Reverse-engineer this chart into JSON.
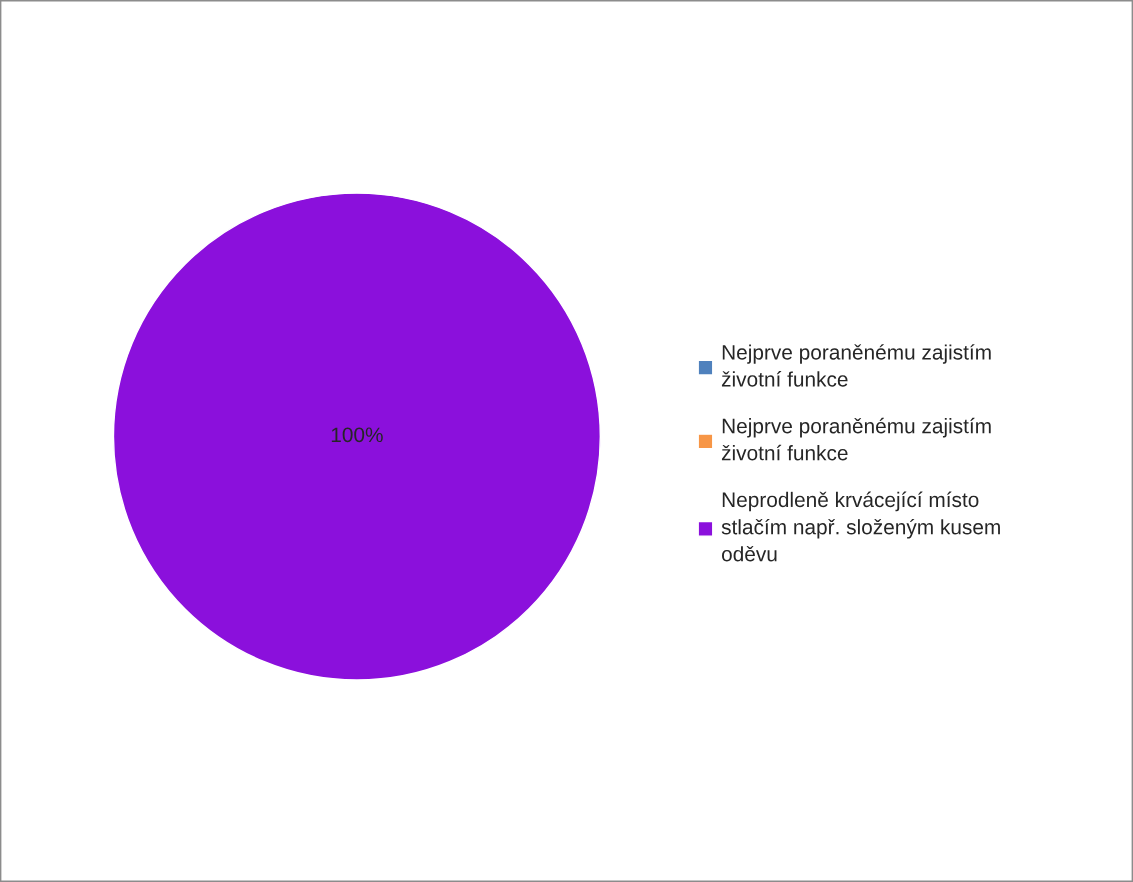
{
  "chart_data": {
    "type": "pie",
    "categories": [
      "Nejprve poraněnému zajistím životní funkce",
      "Nejprve poraněnému zajistím životní funkce",
      "Neprodleně krvácející místo stlačím např. složeným kusem oděvu"
    ],
    "values": [
      0,
      0,
      100
    ],
    "colors": [
      "#4f81bd",
      "#f79646",
      "#8b10dc"
    ],
    "value_labels": [
      null,
      null,
      "100%"
    ],
    "legend": "right"
  }
}
